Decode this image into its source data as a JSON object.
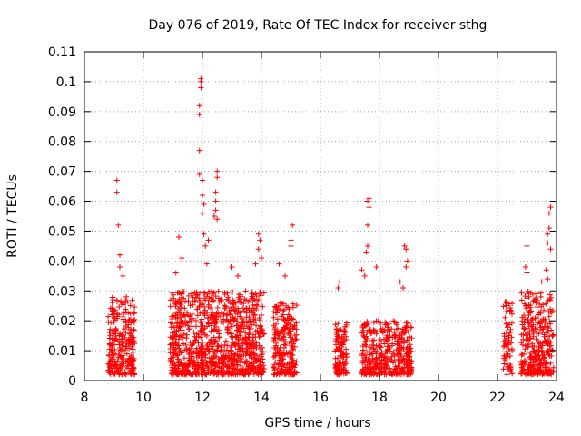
{
  "chart_data": {
    "type": "scatter",
    "title": "Day 076 of 2019, Rate Of TEC Index for receiver sthg",
    "xlabel": "GPS time / hours",
    "ylabel": "ROTI / TECUs",
    "xlim": [
      8,
      24
    ],
    "ylim": [
      0,
      0.11
    ],
    "grid": true,
    "marker": "+",
    "marker_color": "#ff0000",
    "x_ticks": [
      8,
      10,
      12,
      14,
      16,
      18,
      20,
      22,
      24
    ],
    "x_tick_labels": [
      "8",
      "10",
      "12",
      "14",
      "16",
      "18",
      "20",
      "22",
      "24"
    ],
    "y_ticks": [
      0,
      0.01,
      0.02,
      0.03,
      0.04,
      0.05,
      0.06,
      0.07,
      0.08,
      0.09,
      0.1,
      0.11
    ],
    "y_tick_labels": [
      "0",
      "0.01",
      "0.02",
      "0.03",
      "0.04",
      "0.05",
      "0.06",
      "0.07",
      "0.08",
      "0.09",
      "0.1",
      "0.11"
    ],
    "dense_clusters": [
      {
        "x_start": 8.8,
        "x_end": 9.7,
        "typical_max": 0.028,
        "n": 260
      },
      {
        "x_start": 10.9,
        "x_end": 14.1,
        "typical_max": 0.03,
        "n": 1000
      },
      {
        "x_start": 14.4,
        "x_end": 15.2,
        "typical_max": 0.026,
        "n": 230
      },
      {
        "x_start": 16.5,
        "x_end": 16.9,
        "typical_max": 0.02,
        "n": 110
      },
      {
        "x_start": 17.4,
        "x_end": 19.1,
        "typical_max": 0.02,
        "n": 420
      },
      {
        "x_start": 22.2,
        "x_end": 22.5,
        "typical_max": 0.028,
        "n": 70
      },
      {
        "x_start": 22.8,
        "x_end": 23.9,
        "typical_max": 0.03,
        "n": 330
      }
    ],
    "peak_points": [
      {
        "x": 9.1,
        "y": 0.067
      },
      {
        "x": 9.1,
        "y": 0.063
      },
      {
        "x": 9.15,
        "y": 0.052
      },
      {
        "x": 9.2,
        "y": 0.042
      },
      {
        "x": 9.2,
        "y": 0.038
      },
      {
        "x": 9.3,
        "y": 0.035
      },
      {
        "x": 11.2,
        "y": 0.048
      },
      {
        "x": 11.3,
        "y": 0.041
      },
      {
        "x": 11.1,
        "y": 0.036
      },
      {
        "x": 11.95,
        "y": 0.101
      },
      {
        "x": 11.95,
        "y": 0.1
      },
      {
        "x": 11.95,
        "y": 0.098
      },
      {
        "x": 11.9,
        "y": 0.092
      },
      {
        "x": 11.9,
        "y": 0.089
      },
      {
        "x": 11.9,
        "y": 0.077
      },
      {
        "x": 11.9,
        "y": 0.069
      },
      {
        "x": 12.0,
        "y": 0.067
      },
      {
        "x": 12.0,
        "y": 0.062
      },
      {
        "x": 12.05,
        "y": 0.059
      },
      {
        "x": 12.0,
        "y": 0.056
      },
      {
        "x": 12.05,
        "y": 0.049
      },
      {
        "x": 12.1,
        "y": 0.045
      },
      {
        "x": 12.15,
        "y": 0.039
      },
      {
        "x": 12.2,
        "y": 0.047
      },
      {
        "x": 12.5,
        "y": 0.07
      },
      {
        "x": 12.5,
        "y": 0.068
      },
      {
        "x": 12.45,
        "y": 0.063
      },
      {
        "x": 12.45,
        "y": 0.06
      },
      {
        "x": 12.45,
        "y": 0.057
      },
      {
        "x": 12.4,
        "y": 0.055
      },
      {
        "x": 12.5,
        "y": 0.054
      },
      {
        "x": 13.0,
        "y": 0.038
      },
      {
        "x": 13.2,
        "y": 0.035
      },
      {
        "x": 13.9,
        "y": 0.049
      },
      {
        "x": 13.95,
        "y": 0.047
      },
      {
        "x": 13.9,
        "y": 0.044
      },
      {
        "x": 14.0,
        "y": 0.041
      },
      {
        "x": 13.8,
        "y": 0.039
      },
      {
        "x": 15.05,
        "y": 0.052
      },
      {
        "x": 15.0,
        "y": 0.047
      },
      {
        "x": 15.0,
        "y": 0.045
      },
      {
        "x": 14.6,
        "y": 0.039
      },
      {
        "x": 14.8,
        "y": 0.035
      },
      {
        "x": 16.65,
        "y": 0.033
      },
      {
        "x": 16.6,
        "y": 0.031
      },
      {
        "x": 17.65,
        "y": 0.061
      },
      {
        "x": 17.6,
        "y": 0.06
      },
      {
        "x": 17.65,
        "y": 0.058
      },
      {
        "x": 17.6,
        "y": 0.052
      },
      {
        "x": 17.6,
        "y": 0.045
      },
      {
        "x": 17.55,
        "y": 0.043
      },
      {
        "x": 17.4,
        "y": 0.037
      },
      {
        "x": 17.5,
        "y": 0.035
      },
      {
        "x": 17.9,
        "y": 0.038
      },
      {
        "x": 18.85,
        "y": 0.045
      },
      {
        "x": 18.9,
        "y": 0.044
      },
      {
        "x": 18.95,
        "y": 0.04
      },
      {
        "x": 18.9,
        "y": 0.038
      },
      {
        "x": 18.7,
        "y": 0.033
      },
      {
        "x": 18.8,
        "y": 0.031
      },
      {
        "x": 23.0,
        "y": 0.045
      },
      {
        "x": 22.95,
        "y": 0.038
      },
      {
        "x": 23.0,
        "y": 0.036
      },
      {
        "x": 23.8,
        "y": 0.058
      },
      {
        "x": 23.75,
        "y": 0.056
      },
      {
        "x": 23.75,
        "y": 0.051
      },
      {
        "x": 23.7,
        "y": 0.049
      },
      {
        "x": 23.7,
        "y": 0.046
      },
      {
        "x": 23.8,
        "y": 0.044
      },
      {
        "x": 23.65,
        "y": 0.037
      },
      {
        "x": 23.7,
        "y": 0.034
      },
      {
        "x": 23.5,
        "y": 0.033
      }
    ]
  }
}
